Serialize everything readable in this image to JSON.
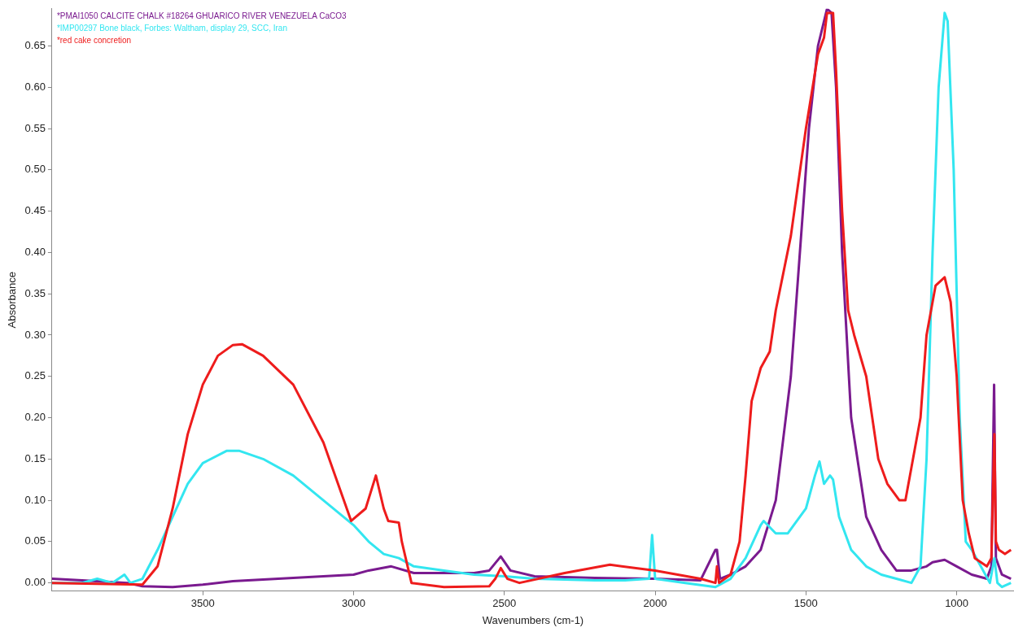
{
  "chart_data": {
    "type": "line",
    "xlabel": "Wavenumbers (cm-1)",
    "ylabel": "Absorbance",
    "xlim": [
      4000,
      810
    ],
    "ylim": [
      -0.01,
      0.695
    ],
    "xticks": [
      3500,
      3000,
      2500,
      2000,
      1500,
      1000
    ],
    "yticks": [
      {
        "value": 0,
        "label": "0.00"
      },
      0.05,
      {
        "value": 0.1,
        "label": "0.10"
      },
      0.15,
      {
        "value": 0.2,
        "label": "0.20"
      },
      0.25,
      {
        "value": 0.3,
        "label": "0.30"
      },
      0.35,
      {
        "value": 0.4,
        "label": "0.40"
      },
      0.45,
      {
        "value": 0.5,
        "label": "0.50"
      },
      0.55,
      {
        "value": 0.6,
        "label": "0.60"
      },
      0.65
    ],
    "grid": false,
    "legend": "top left",
    "marker": "none",
    "line_style": "solid",
    "series": [
      {
        "name": "*PMAI1050 CALCITE CHALK #18264 GHUARICO RIVER VENEZUELA CaCO3",
        "color": "#7a1a8f",
        "x": [
          4000,
          3900,
          3750,
          3700,
          3600,
          3500,
          3400,
          3200,
          3000,
          2950,
          2875,
          2800,
          2600,
          2550,
          2512,
          2480,
          2400,
          2200,
          2000,
          1850,
          1800,
          1795,
          1785,
          1750,
          1700,
          1650,
          1600,
          1550,
          1520,
          1490,
          1460,
          1430,
          1415,
          1400,
          1380,
          1350,
          1300,
          1250,
          1200,
          1150,
          1100,
          1080,
          1040,
          1000,
          950,
          900,
          885,
          876,
          870,
          850,
          820
        ],
        "values": [
          0.005,
          0.003,
          0.0,
          -0.004,
          -0.005,
          -0.002,
          0.002,
          0.006,
          0.01,
          0.015,
          0.02,
          0.012,
          0.012,
          0.015,
          0.032,
          0.015,
          0.008,
          0.006,
          0.005,
          0.003,
          0.04,
          0.04,
          0.005,
          0.01,
          0.02,
          0.04,
          0.1,
          0.25,
          0.4,
          0.55,
          0.65,
          0.695,
          0.69,
          0.6,
          0.4,
          0.2,
          0.08,
          0.04,
          0.015,
          0.015,
          0.02,
          0.025,
          0.028,
          0.02,
          0.01,
          0.005,
          0.02,
          0.24,
          0.03,
          0.01,
          0.005
        ]
      },
      {
        "name": "*IMP00297 Bone black, Forbes: Waltham, display 29, SCC, Iran",
        "color": "#33e6f0",
        "x": [
          4000,
          3900,
          3850,
          3800,
          3760,
          3740,
          3700,
          3650,
          3600,
          3550,
          3500,
          3420,
          3380,
          3300,
          3200,
          3100,
          3000,
          2950,
          2900,
          2850,
          2800,
          2700,
          2600,
          2500,
          2400,
          2200,
          2100,
          2020,
          2010,
          2000,
          1900,
          1800,
          1750,
          1700,
          1650,
          1640,
          1600,
          1560,
          1500,
          1470,
          1455,
          1440,
          1420,
          1410,
          1390,
          1350,
          1300,
          1250,
          1200,
          1150,
          1120,
          1100,
          1080,
          1060,
          1040,
          1030,
          1010,
          990,
          970,
          950,
          920,
          890,
          875,
          865,
          850,
          820
        ],
        "values": [
          0.0,
          0.0,
          0.005,
          0.0,
          0.01,
          0.0,
          0.005,
          0.04,
          0.08,
          0.12,
          0.145,
          0.16,
          0.16,
          0.15,
          0.13,
          0.1,
          0.07,
          0.05,
          0.035,
          0.03,
          0.02,
          0.015,
          0.01,
          0.008,
          0.005,
          0.003,
          0.003,
          0.005,
          0.058,
          0.005,
          0.0,
          -0.005,
          0.005,
          0.03,
          0.07,
          0.075,
          0.06,
          0.06,
          0.09,
          0.13,
          0.147,
          0.12,
          0.13,
          0.125,
          0.08,
          0.04,
          0.02,
          0.01,
          0.005,
          0.0,
          0.02,
          0.15,
          0.4,
          0.6,
          0.69,
          0.68,
          0.5,
          0.2,
          0.05,
          0.04,
          0.02,
          0.0,
          0.03,
          0.0,
          -0.005,
          0.0
        ]
      },
      {
        "name": "*red cake concretion",
        "color": "#ee1c1c",
        "x": [
          4000,
          3700,
          3650,
          3600,
          3550,
          3500,
          3450,
          3400,
          3370,
          3300,
          3200,
          3100,
          3008,
          2960,
          2926,
          2900,
          2885,
          2850,
          2840,
          2808,
          2700,
          2550,
          2530,
          2512,
          2490,
          2450,
          2300,
          2150,
          2000,
          1850,
          1800,
          1795,
          1788,
          1750,
          1720,
          1700,
          1680,
          1650,
          1620,
          1600,
          1550,
          1500,
          1460,
          1440,
          1430,
          1410,
          1400,
          1380,
          1360,
          1340,
          1300,
          1260,
          1230,
          1190,
          1170,
          1150,
          1120,
          1100,
          1070,
          1040,
          1020,
          1000,
          980,
          960,
          940,
          900,
          885,
          875,
          870,
          860,
          840,
          820
        ],
        "values": [
          0.0,
          -0.002,
          0.02,
          0.09,
          0.18,
          0.24,
          0.275,
          0.288,
          0.289,
          0.275,
          0.24,
          0.17,
          0.075,
          0.09,
          0.13,
          0.09,
          0.075,
          0.073,
          0.05,
          0.0,
          -0.005,
          -0.004,
          0.005,
          0.018,
          0.005,
          0.0,
          0.012,
          0.022,
          0.015,
          0.005,
          0.0,
          0.02,
          0.0,
          0.01,
          0.05,
          0.13,
          0.22,
          0.26,
          0.28,
          0.33,
          0.42,
          0.55,
          0.64,
          0.66,
          0.69,
          0.69,
          0.62,
          0.45,
          0.33,
          0.3,
          0.25,
          0.15,
          0.12,
          0.1,
          0.1,
          0.14,
          0.2,
          0.3,
          0.36,
          0.37,
          0.34,
          0.25,
          0.1,
          0.06,
          0.03,
          0.02,
          0.03,
          0.18,
          0.05,
          0.04,
          0.035,
          0.04
        ]
      }
    ]
  }
}
